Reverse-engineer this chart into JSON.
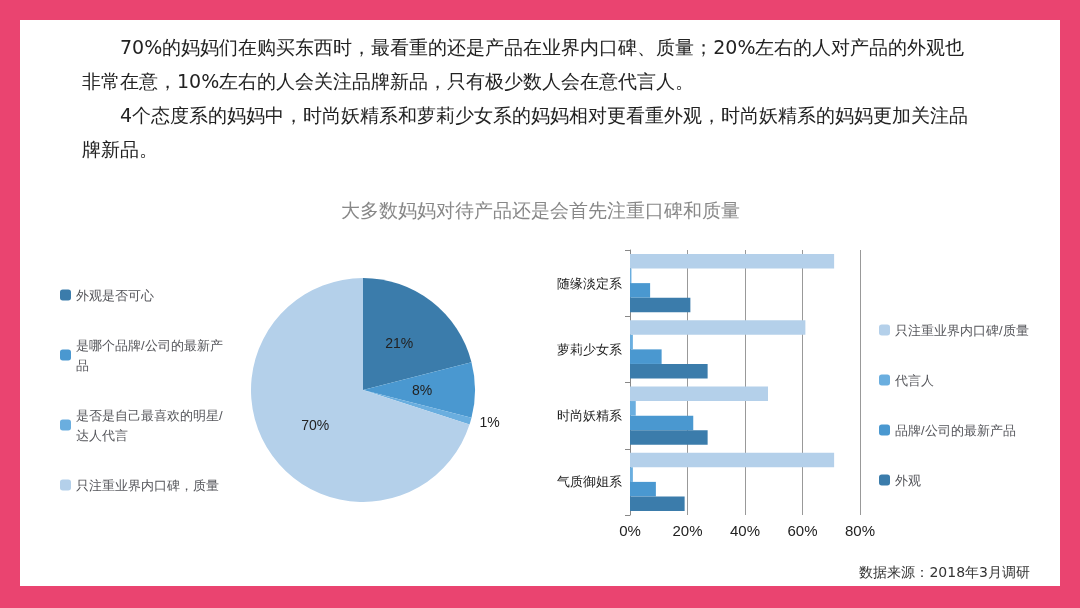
{
  "chart_data": [
    {
      "type": "pie",
      "title": "大多数妈妈对待产品还是会首先注重口碑和质量",
      "annotations": [
        "70%的妈妈们在购买东西时，最看重的还是产品在业界内口碑、质量；20%左右的人对产品的外观也非常在意，10%左右的人会关注品牌新品，只有极少数人会在意代言人。",
        "4个态度系的妈妈中，时尚妖精系和萝莉少女系的妈妈相对更看重外观，时尚妖精系的妈妈更加关注品牌新品。"
      ],
      "categories": [
        "外观是否可心",
        "是哪个品牌/公司的最新产品",
        "是否是自己最喜欢的明星/达人代言",
        "只注重业界内口碑，质量"
      ],
      "values": [
        21,
        8,
        1,
        70
      ],
      "colors": [
        "#3b7cab",
        "#4a98d0",
        "#6aaedf",
        "#b4d0ea"
      ],
      "value_labels": [
        "21%",
        "8%",
        "1%",
        "70%"
      ],
      "legend": "left"
    },
    {
      "type": "bar",
      "orientation": "horizontal",
      "categories": [
        "随缘淡定系",
        "萝莉少女系",
        "时尚妖精系",
        "气质御姐系"
      ],
      "series": [
        {
          "name": "只注重业界内口碑/质量",
          "color": "#b4d0ea",
          "values": [
            71,
            61,
            48,
            71
          ]
        },
        {
          "name": "代言人",
          "color": "#6aaedf",
          "values": [
            0.5,
            1,
            2,
            1
          ]
        },
        {
          "name": "品牌/公司的最新产品",
          "color": "#4a98d0",
          "values": [
            7,
            11,
            22,
            9
          ]
        },
        {
          "name": "外观",
          "color": "#3b7cab",
          "values": [
            21,
            27,
            27,
            19
          ]
        }
      ],
      "xlim": [
        0,
        80
      ],
      "xticks": [
        {
          "value": 0,
          "label": "0%"
        },
        {
          "value": 20,
          "label": "20%"
        },
        {
          "value": 40,
          "label": "40%"
        },
        {
          "value": 60,
          "label": "60%"
        },
        {
          "value": 80,
          "label": "80%"
        }
      ],
      "grid": "x",
      "legend": "right",
      "annotations": [
        "数据来源：2018年3月调研"
      ]
    }
  ]
}
